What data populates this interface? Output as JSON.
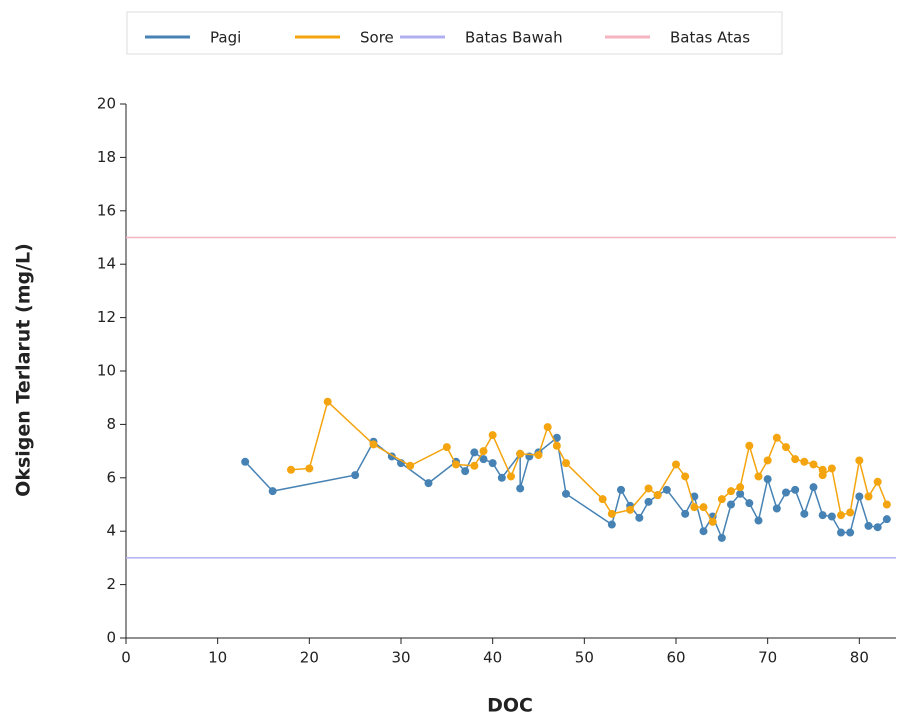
{
  "chart_data": {
    "type": "line",
    "x_label": "DOC",
    "y_label": "Oksigen Terlarut (mg/L)",
    "xlim": [
      0,
      84
    ],
    "xticks": [
      0,
      10,
      20,
      30,
      40,
      50,
      60,
      70,
      80
    ],
    "ylim": [
      0,
      20
    ],
    "yticks": [
      0,
      2,
      4,
      6,
      8,
      10,
      12,
      14,
      16,
      18,
      20
    ],
    "series": [
      {
        "name": "Pagi",
        "color": "#4682b4",
        "marker": true,
        "x": [
          13,
          16,
          25,
          27,
          29,
          30,
          33,
          36,
          37,
          38,
          39,
          40,
          41,
          43,
          43,
          44,
          45,
          47,
          48,
          53,
          54,
          55,
          56,
          57,
          58,
          59,
          61,
          62,
          63,
          64,
          65,
          66,
          67,
          68,
          69,
          70,
          71,
          72,
          73,
          74,
          75,
          76,
          77,
          78,
          79,
          80,
          81,
          82,
          83
        ],
        "values": [
          6.6,
          5.5,
          6.1,
          7.35,
          6.8,
          6.55,
          5.8,
          6.6,
          6.25,
          6.95,
          6.7,
          6.55,
          6.0,
          6.9,
          5.6,
          6.8,
          6.95,
          7.5,
          5.4,
          4.25,
          5.55,
          4.95,
          4.5,
          5.1,
          5.35,
          5.55,
          4.65,
          5.3,
          4.0,
          4.55,
          3.75,
          5.0,
          5.4,
          5.05,
          4.4,
          5.95,
          4.85,
          5.45,
          5.55,
          4.65,
          5.65,
          4.6,
          4.55,
          3.95,
          3.95,
          5.3,
          4.2,
          4.15,
          4.45
        ]
      },
      {
        "name": "Sore",
        "color": "#f4a40e",
        "marker": true,
        "x": [
          18,
          20,
          22,
          27,
          31,
          35,
          36,
          38,
          39,
          40,
          42,
          43,
          45,
          46,
          47,
          48,
          52,
          53,
          55,
          57,
          58,
          60,
          61,
          62,
          63,
          64,
          65,
          66,
          67,
          68,
          69,
          70,
          71,
          72,
          73,
          74,
          75,
          76,
          76,
          77,
          78,
          79,
          80,
          81,
          82,
          83
        ],
        "values": [
          6.3,
          6.35,
          8.85,
          7.25,
          6.45,
          7.15,
          6.5,
          6.45,
          7.0,
          7.6,
          6.05,
          6.9,
          6.85,
          7.9,
          7.2,
          6.55,
          5.2,
          4.65,
          4.8,
          5.6,
          5.35,
          6.5,
          6.05,
          4.9,
          4.9,
          4.35,
          5.2,
          5.5,
          5.65,
          7.2,
          6.05,
          6.65,
          7.5,
          7.15,
          6.7,
          6.6,
          6.5,
          6.3,
          6.1,
          6.35,
          4.6,
          4.7,
          6.65,
          5.3,
          5.85,
          5.0
        ]
      },
      {
        "name": "Batas Bawah",
        "color": "#b0b0f0",
        "marker": false,
        "x": [
          0,
          84
        ],
        "values": [
          3,
          3
        ]
      },
      {
        "name": "Batas Atas",
        "color": "#f4b4c0",
        "marker": false,
        "x": [
          0,
          84
        ],
        "values": [
          15,
          15
        ]
      }
    ]
  }
}
